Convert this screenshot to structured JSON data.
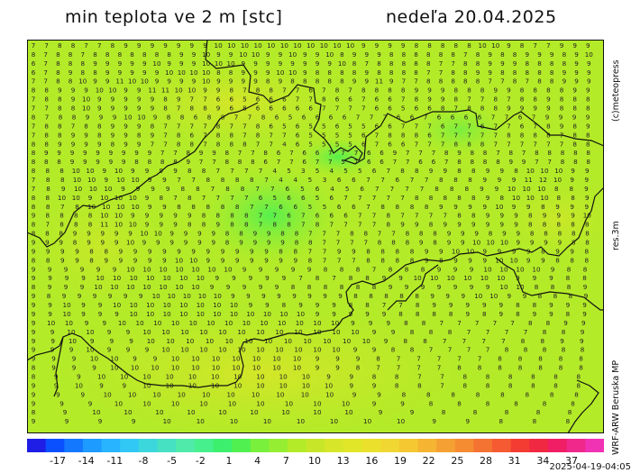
{
  "header": {
    "title_left": "min teplota ve 2 m [stc]",
    "title_right": "nedeľa 20.04.2025"
  },
  "side_labels": {
    "credit": "(c)meteopress",
    "resolution": "res.3m",
    "model": "WRF-ARW Beruska MP"
  },
  "footer": {
    "timestamp": "2025-04-19-04:05"
  },
  "colorbar": {
    "tick_labels": [
      "-17",
      "-14",
      "-11",
      "-8",
      "-5",
      "-2",
      "1",
      "4",
      "7",
      "10",
      "13",
      "16",
      "19",
      "22",
      "25",
      "28",
      "31",
      "34",
      "37"
    ],
    "colors": [
      "#1e1ee6",
      "#0a50ff",
      "#1478ff",
      "#1e9bff",
      "#28b4ff",
      "#32c8f5",
      "#3cd7dc",
      "#46e1c3",
      "#50ebaa",
      "#46f08c",
      "#3cf06e",
      "#50f050",
      "#78f03c",
      "#96ee32",
      "#b4eb28",
      "#c8e628",
      "#d7e628",
      "#e1e628",
      "#ebe12d",
      "#f0d732",
      "#f5c832",
      "#f5b432",
      "#f5a032",
      "#f58c32",
      "#f57332",
      "#f55a32",
      "#f53c32",
      "#f02841",
      "#f01e64",
      "#f0288c",
      "#f032b4"
    ]
  },
  "map": {
    "description": "gridded minimum temperature field with printed station values",
    "grid_values": [
      "77887789999999101010101010101010101099998888810109877999",
      "8788788888889910991010991099108999888888789889998910",
      "678889999910999101010999999991087888887788999888899",
      "6789889999910101010889991010988889888877889988888999",
      "7788109911101099991099998988888991197788888778788999",
      "8899910109911111010998788776787888899988899888899",
      "78891099999897766566677866766789987787889888",
      "77881099999878896866666777766566878889999888",
      "87889991010988688778656666777667666677679999",
      "7887889998777787786565565566777677677678989",
      "7889989989786788787765555678886777778888788",
      "8899998997788788877465555676677788877777788",
      "89999999997789987786766777669777898878788888",
      "88899999888897788867767757667766788889977888",
      "8881010910999988777745354556788998899810101099",
      "7881010910109977888874453667767788899911121099",
      "78910101099998878877656456777788899101010889",
      "881010910101098787777656656777778888898101010889",
      "88781010101099888887766556678888999910998999",
      "9888810109999988887767666778777788999899910",
      "8788811101099988988788787777899899999988888",
      "8889999910109999889988777887788899989988888",
      "999899910999999899998877778889899101010999988",
      "99998899999999999887799888899101099998998",
      "8899899999101099999998777888898999101099888",
      "9999991010101010101099999888788899910101010988",
      "99991010101010101099999787889910101010101099988",
      "89991010101010101099999888888999999910108889",
      "98999999101010101099999999888889991010998889",
      "9910991010101010101010998999887789999988999",
      "9910999101010101010101010101099999888898989989",
      "91010991010101010101010101010101099988777778899",
      "99101099101010101010101010101010998887777889",
      "991099910101010101010101010101098877778899",
      "99910999101010101010101010109988777788888",
      "9991010991010101010101099987777788888",
      "89991010101010101010101099877778888888",
      "89910101010101010101010998877888888",
      "99109910101010101010101099887888888",
      "999101010101010101010109988888888",
      "99910101010101010101099888888",
      "891010101010101010109988888",
      "9999101010101010101099888"
    ]
  }
}
